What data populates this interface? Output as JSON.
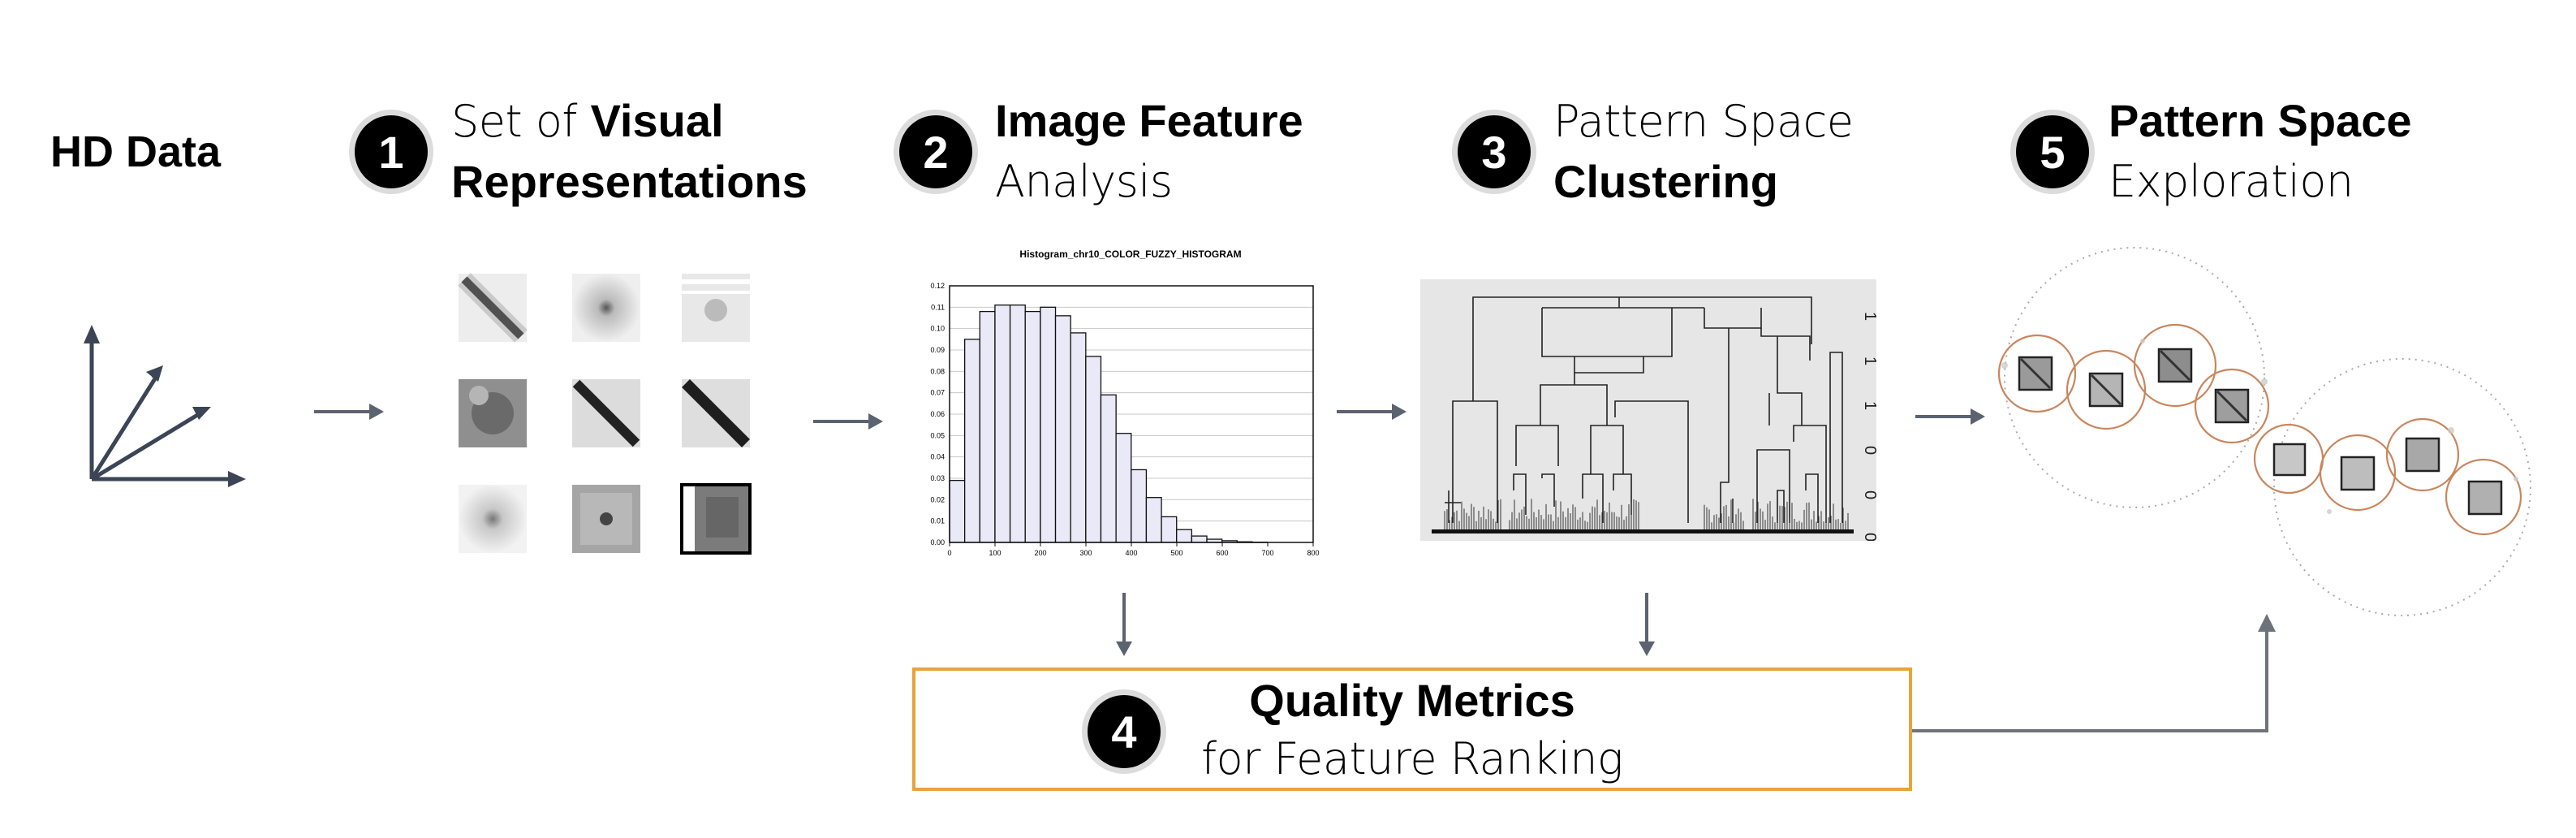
{
  "hd_data": {
    "title": "HD Data"
  },
  "steps": [
    {
      "number": "1",
      "line1_light": "Set of ",
      "line1_bold": "Visual",
      "line2_bold": "Representations",
      "line2_light": ""
    },
    {
      "number": "2",
      "line1_light": "",
      "line1_bold": "Image Feature",
      "line2_bold": "",
      "line2_light": "Analysis"
    },
    {
      "number": "3",
      "line1_light": "Pattern Space",
      "line1_bold": "",
      "line2_bold": "Clustering",
      "line2_light": ""
    },
    {
      "number": "5",
      "line1_light": "",
      "line1_bold": "Pattern Space",
      "line2_bold": "",
      "line2_light": "Exploration"
    }
  ],
  "quality_metrics": {
    "number": "4",
    "title": "Quality Metrics",
    "subtitle": "for Feature Ranking"
  },
  "histogram": {
    "title": "Histogram_chr10_COLOR_FUZZY_HISTOGRAM",
    "x_ticks": [
      "0",
      "100",
      "200",
      "300",
      "400",
      "500",
      "600",
      "700",
      "800"
    ],
    "y_ticks": [
      "0.00",
      "0.01",
      "0.02",
      "0.03",
      "0.04",
      "0.05",
      "0.06",
      "0.07",
      "0.08",
      "0.09",
      "0.10",
      "0.11",
      "0.12"
    ],
    "bin_width": 33.3,
    "values": [
      0.029,
      0.095,
      0.108,
      0.111,
      0.111,
      0.108,
      0.11,
      0.106,
      0.098,
      0.087,
      0.069,
      0.051,
      0.034,
      0.021,
      0.012,
      0.006,
      0.003,
      0.0015,
      0.0008,
      0.0003,
      0.0001,
      0.0,
      0.0,
      0.0
    ],
    "xlim": [
      0,
      800
    ],
    "ylim": [
      0,
      0.12
    ]
  },
  "dendrogram": {
    "axis_labels": [
      "1",
      "1",
      "1",
      "0",
      "0",
      "0"
    ]
  },
  "colors": {
    "arrow": "#5b6270",
    "box_border": "#e8a33c",
    "hist_fill": "#e9e9f8",
    "circle": "#c9865d"
  }
}
